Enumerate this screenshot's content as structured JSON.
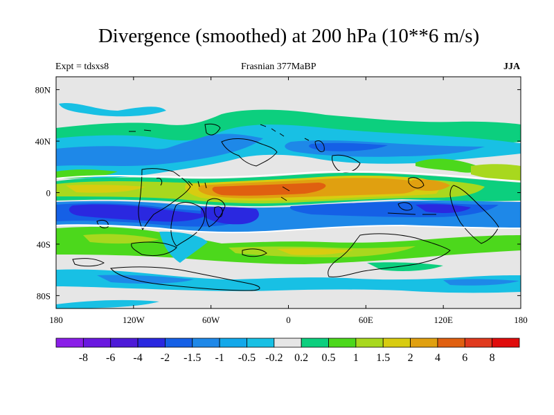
{
  "header": {
    "title": "Divergence (smoothed) at 200 hPa (10**6 m/s)",
    "left": "Expt = tdsxs8",
    "center": "Frasnian 377MaBP",
    "right": "JJA"
  },
  "map": {
    "lon_ticks": [
      "180",
      "120W",
      "60W",
      "0",
      "60E",
      "120E",
      "180"
    ],
    "lat_ticks": [
      "80N",
      "40N",
      "0",
      "40S",
      "80S"
    ],
    "background": "#e6e6e6",
    "coast_color": "#000000"
  },
  "colorbar": {
    "labels": [
      "-8",
      "-6",
      "-4",
      "-2",
      "-1.5",
      "-1",
      "-0.5",
      "-0.2",
      "0.2",
      "0.5",
      "1",
      "1.5",
      "2",
      "4",
      "6",
      "8"
    ],
    "colors": [
      "#8a1ee8",
      "#6a18e0",
      "#4d1ad8",
      "#2a28e0",
      "#1560e6",
      "#1e88e8",
      "#12a8ea",
      "#18c0e4",
      "#e6e6e6",
      "#0ccf7e",
      "#4cd81c",
      "#a8d81e",
      "#d8cc10",
      "#e0a010",
      "#e06010",
      "#e03a1e",
      "#e00c0c"
    ]
  }
}
